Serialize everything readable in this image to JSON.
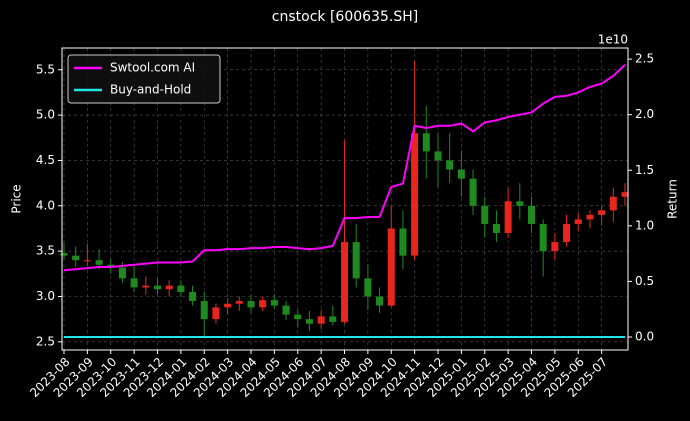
{
  "chart_data": {
    "type": "candlestick",
    "title": "cnstock [600635.SH]",
    "y_label": "Price",
    "y2_label": "Return",
    "y2_offset": "1e10",
    "categories": [
      "2023-08",
      null,
      "2023-09",
      null,
      "2023-10",
      null,
      "2023-11",
      null,
      "2023-12",
      null,
      "2024-01",
      null,
      "2024-02",
      null,
      "2024-03",
      null,
      "2024-04",
      null,
      "2024-05",
      null,
      "2024-06",
      null,
      "2024-07",
      null,
      "2024-08",
      null,
      "2024-09",
      null,
      "2024-10",
      null,
      "2024-11",
      null,
      "2024-12",
      null,
      "2025-01",
      null,
      "2025-02",
      null,
      "2025-03",
      null,
      "2025-04",
      null,
      "2025-05",
      null,
      "2025-06",
      null,
      "2025-07",
      null,
      null
    ],
    "open": [
      3.48,
      3.45,
      3.4,
      3.4,
      3.35,
      3.32,
      3.2,
      3.1,
      3.12,
      3.08,
      3.12,
      3.05,
      2.95,
      2.75,
      2.88,
      2.92,
      2.95,
      2.88,
      2.96,
      2.9,
      2.8,
      2.75,
      2.7,
      2.78,
      2.72,
      3.6,
      3.2,
      3.0,
      2.9,
      3.75,
      3.45,
      4.8,
      4.6,
      4.5,
      4.4,
      4.3,
      4.0,
      3.8,
      3.7,
      4.05,
      4.0,
      3.8,
      3.5,
      3.6,
      3.8,
      3.85,
      3.9,
      3.95,
      4.1
    ],
    "high": [
      3.6,
      3.55,
      3.58,
      3.52,
      3.42,
      3.38,
      3.35,
      3.22,
      3.2,
      3.18,
      3.18,
      3.12,
      3.05,
      2.92,
      2.98,
      3.0,
      3.02,
      3.0,
      3.02,
      2.95,
      2.86,
      2.84,
      2.85,
      2.9,
      4.72,
      3.8,
      3.35,
      3.1,
      4.0,
      3.95,
      5.6,
      5.1,
      4.8,
      4.8,
      4.6,
      4.4,
      4.1,
      3.95,
      4.2,
      4.25,
      4.1,
      3.85,
      3.7,
      3.9,
      3.92,
      3.95,
      4.0,
      4.2,
      4.25
    ],
    "low": [
      3.4,
      3.33,
      3.34,
      3.3,
      3.25,
      3.15,
      3.05,
      3.02,
      3.02,
      3.0,
      3.0,
      2.9,
      2.55,
      2.7,
      2.8,
      2.84,
      2.82,
      2.84,
      2.86,
      2.74,
      2.66,
      2.62,
      2.64,
      2.68,
      2.7,
      3.1,
      2.85,
      2.82,
      2.88,
      3.3,
      3.4,
      4.3,
      4.2,
      4.25,
      4.1,
      3.9,
      3.65,
      3.6,
      3.65,
      3.85,
      3.7,
      3.22,
      3.4,
      3.55,
      3.72,
      3.75,
      3.78,
      3.82,
      4.0
    ],
    "close": [
      3.45,
      3.4,
      3.4,
      3.35,
      3.32,
      3.2,
      3.1,
      3.12,
      3.08,
      3.12,
      3.05,
      2.95,
      2.75,
      2.88,
      2.92,
      2.95,
      2.88,
      2.96,
      2.9,
      2.8,
      2.75,
      2.7,
      2.78,
      2.72,
      3.6,
      3.2,
      3.0,
      2.9,
      3.75,
      3.45,
      4.8,
      4.6,
      4.5,
      4.4,
      4.3,
      4.0,
      3.8,
      3.7,
      4.05,
      4.0,
      3.8,
      3.5,
      3.6,
      3.8,
      3.85,
      3.9,
      3.95,
      4.1,
      4.15
    ],
    "up_color": "#e8261e",
    "down_color": "#1f8a1f",
    "series": [
      {
        "name": "Swtool.com AI",
        "color": "#ff00ff",
        "axis": "y2",
        "values": [
          0.6,
          0.61,
          0.62,
          0.63,
          0.63,
          0.64,
          0.65,
          0.66,
          0.67,
          0.67,
          0.67,
          0.68,
          0.78,
          0.78,
          0.79,
          0.79,
          0.8,
          0.8,
          0.81,
          0.81,
          0.8,
          0.79,
          0.8,
          0.82,
          1.07,
          1.07,
          1.08,
          1.08,
          1.35,
          1.38,
          1.9,
          1.88,
          1.9,
          1.9,
          1.92,
          1.85,
          1.93,
          1.95,
          1.98,
          2.0,
          2.02,
          2.1,
          2.16,
          2.17,
          2.2,
          2.25,
          2.28,
          2.35,
          2.45
        ]
      },
      {
        "name": "Buy-and-Hold",
        "color": "#22e5e5",
        "axis": "y2",
        "values": [
          0,
          0,
          0,
          0,
          0,
          0,
          0,
          0,
          0,
          0,
          0,
          0,
          0,
          0,
          0,
          0,
          0,
          0,
          0,
          0,
          0,
          0,
          0,
          0,
          0,
          0,
          0,
          0,
          0,
          0,
          0,
          0,
          0,
          0,
          0,
          0,
          0,
          0,
          0,
          0,
          0,
          0,
          0,
          0,
          0,
          0,
          0,
          0,
          0
        ]
      }
    ],
    "ylim": [
      2.41,
      5.74
    ],
    "yticks": [
      2.5,
      {
        "value": 3,
        "label": "3.0"
      },
      3.5,
      {
        "value": 4,
        "label": "4.0"
      },
      4.5,
      {
        "value": 5,
        "label": "5.0"
      },
      5.5
    ],
    "y2lim": [
      -0.117,
      2.6
    ],
    "y2ticks": [
      {
        "value": 0,
        "label": "0.0"
      },
      0.5,
      {
        "value": 1,
        "label": "1.0"
      },
      1.5,
      {
        "value": 2,
        "label": "2.0"
      },
      2.5
    ],
    "grid": true,
    "legend": "upper left"
  }
}
